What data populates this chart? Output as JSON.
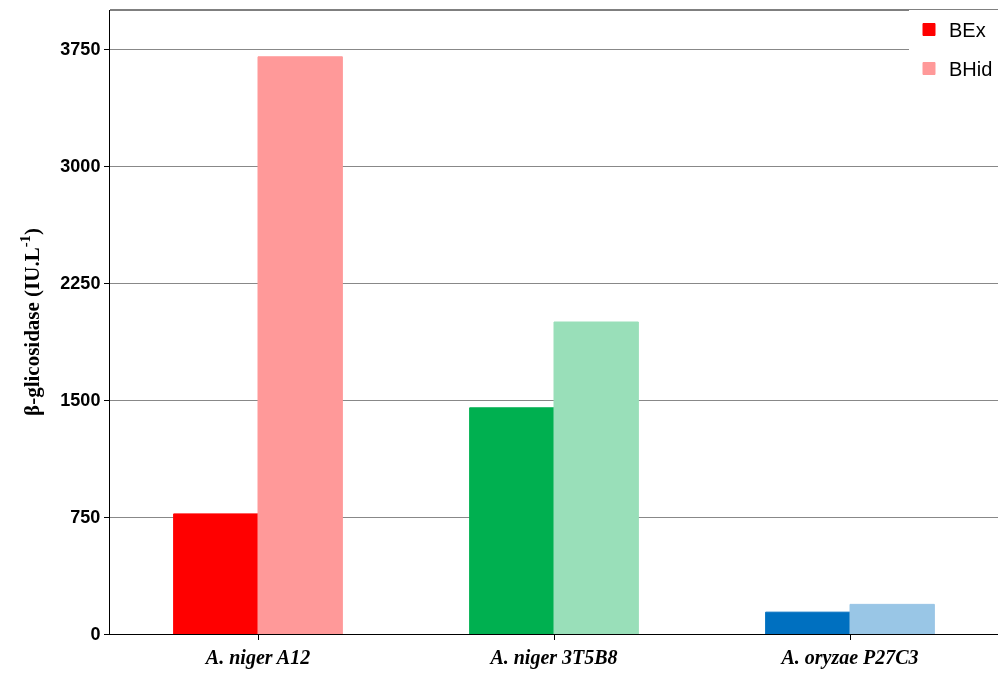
{
  "chart_data": {
    "type": "bar",
    "ylabel": "β-glicosidase (IU.L$^{-1}$)",
    "categories": [
      "A. niger A12",
      "A. niger 3T5B8",
      "A. oryzae P27C3"
    ],
    "series": [
      {
        "name": "BEx",
        "colors": [
          "#ff0000",
          "#00b050",
          "#0070c0"
        ],
        "values": [
          770,
          1450,
          140
        ]
      },
      {
        "name": "BHid",
        "colors": [
          "#ff9999",
          "#99dfb9",
          "#99c6e6"
        ],
        "values": [
          3700,
          2000,
          190
        ]
      }
    ],
    "ylim": [
      0,
      4000
    ],
    "yticks": [
      0,
      750,
      1500,
      2250,
      3000,
      3750
    ],
    "grid": "y",
    "legend": "top right"
  }
}
